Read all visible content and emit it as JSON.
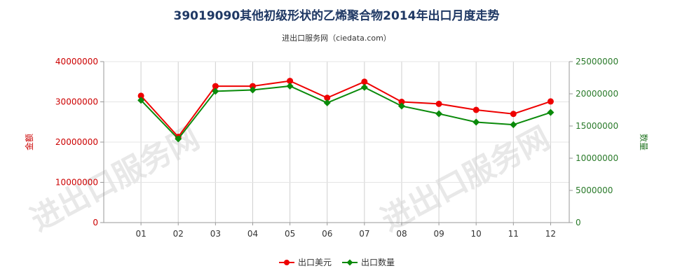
{
  "chart_data": {
    "type": "line",
    "title": "39019090其他初级形状的乙烯聚合物2014年出口月度走势",
    "subtitle": "进出口服务网（ciedata.com）",
    "categories": [
      "01",
      "02",
      "03",
      "04",
      "05",
      "06",
      "07",
      "08",
      "09",
      "10",
      "11",
      "12"
    ],
    "y_left": {
      "label": "金额",
      "ylim": [
        0,
        40000000
      ],
      "ticks": [
        "0",
        "10000000",
        "20000000",
        "30000000",
        "40000000"
      ],
      "color": "#cc0000"
    },
    "y_right": {
      "label": "数量",
      "ylim": [
        0,
        25000000
      ],
      "ticks": [
        "0",
        "5000000",
        "10000000",
        "15000000",
        "20000000",
        "25000000"
      ],
      "color": "#2a7a2a"
    },
    "series": [
      {
        "name": "出口美元",
        "axis": "left",
        "color": "#ee0000",
        "values": [
          31500000,
          21300000,
          33900000,
          33900000,
          35200000,
          31000000,
          35000000,
          30000000,
          29500000,
          28000000,
          27000000,
          30100000
        ]
      },
      {
        "name": "出口数量",
        "axis": "right",
        "color": "#0a8a0a",
        "values": [
          19000000,
          13000000,
          20400000,
          20600000,
          21200000,
          18600000,
          21000000,
          18100000,
          16900000,
          15600000,
          15200000,
          17100000
        ]
      }
    ],
    "grid": "vertical",
    "legend": "bottom-center",
    "watermark": "进出口服务网"
  }
}
